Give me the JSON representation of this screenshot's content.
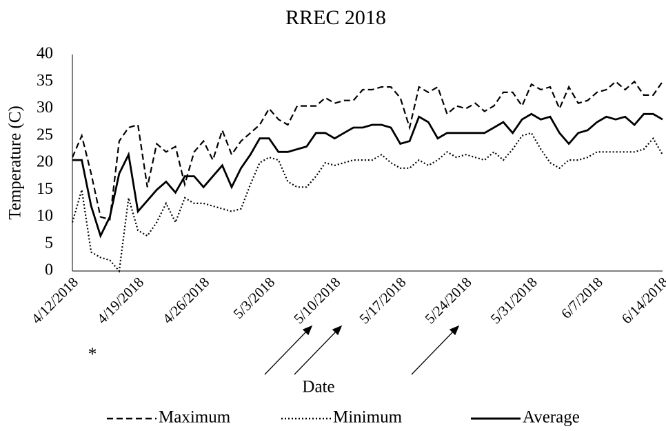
{
  "chart_data": {
    "type": "line",
    "title": "RREC 2018",
    "x_label": "Date",
    "y_label": "Temperature (C)",
    "categories": [
      "4/12/2018",
      null,
      null,
      null,
      null,
      null,
      null,
      "4/19/2018",
      null,
      null,
      null,
      null,
      null,
      null,
      "4/26/2018",
      null,
      null,
      null,
      null,
      null,
      null,
      "5/3/2018",
      null,
      null,
      null,
      null,
      null,
      null,
      "5/10/2018",
      null,
      null,
      null,
      null,
      null,
      null,
      "5/17/2018",
      null,
      null,
      null,
      null,
      null,
      null,
      "5/24/2018",
      null,
      null,
      null,
      null,
      null,
      null,
      "5/31/2018",
      null,
      null,
      null,
      null,
      null,
      null,
      "6/7/2018",
      null,
      null,
      null,
      null,
      null,
      null,
      "6/14/2018"
    ],
    "series": [
      {
        "name": "Maximum",
        "color": "#000000",
        "dash": "dashed",
        "values": [
          21,
          25,
          18,
          10,
          9.5,
          24,
          26.5,
          27,
          15.5,
          23.5,
          22,
          23,
          16,
          22,
          24,
          20.5,
          26,
          21.5,
          24,
          25.5,
          27,
          30,
          28,
          27,
          30.5,
          30.5,
          30.5,
          32,
          31,
          31.5,
          31.5,
          33.5,
          33.5,
          34,
          34,
          32,
          26.5,
          34,
          33,
          34,
          29,
          30.5,
          30,
          31,
          29.5,
          30.5,
          33,
          33,
          30.5,
          34.5,
          33.5,
          34,
          30,
          34,
          31,
          31.5,
          33,
          33.5,
          35,
          33.5,
          35,
          32.5,
          32.5,
          35
        ]
      },
      {
        "name": "Minimum",
        "color": "#000000",
        "dash": "dotted",
        "values": [
          9,
          15,
          3.5,
          2.5,
          2,
          0,
          13.5,
          7.5,
          6.5,
          9,
          12.5,
          9,
          13.5,
          12.5,
          12.5,
          12,
          11.5,
          11,
          11.5,
          16,
          20,
          21,
          20.5,
          16.5,
          15.5,
          15.5,
          17.5,
          20,
          19.5,
          20,
          20.5,
          20.5,
          20.5,
          21.5,
          20,
          19,
          19,
          20.5,
          19.5,
          20.5,
          22,
          21,
          21.5,
          21,
          20.5,
          22,
          20.5,
          22.5,
          25,
          25.5,
          22.5,
          20,
          19,
          20.5,
          20.5,
          21,
          22,
          22,
          22,
          22,
          22,
          22.5,
          24.5,
          21.5
        ]
      },
      {
        "name": "Average",
        "color": "#000000",
        "dash": "solid",
        "values": [
          20.5,
          20.5,
          12,
          6.5,
          10,
          18,
          21.5,
          11,
          13,
          15,
          16.5,
          14.5,
          17.5,
          17.5,
          15.5,
          17.5,
          19.5,
          15.5,
          19,
          21.5,
          24.5,
          24.5,
          22,
          22,
          22.5,
          23,
          25.5,
          25.5,
          24.5,
          25.5,
          26.5,
          26.5,
          27,
          27,
          26.5,
          23.5,
          24,
          28.5,
          27.5,
          24.5,
          25.5,
          25.5,
          25.5,
          25.5,
          25.5,
          26.5,
          27.5,
          25.5,
          28,
          29,
          28,
          28.5,
          25.5,
          23.5,
          25.5,
          26,
          27.5,
          28.5,
          28,
          28.5,
          27,
          29,
          29,
          28
        ]
      }
    ],
    "ylim": [
      0,
      40
    ],
    "yticks": [
      0,
      5,
      10,
      15,
      20,
      25,
      30,
      35,
      40
    ],
    "grid": false,
    "legend": "bottom",
    "annotations": [
      "*"
    ]
  }
}
